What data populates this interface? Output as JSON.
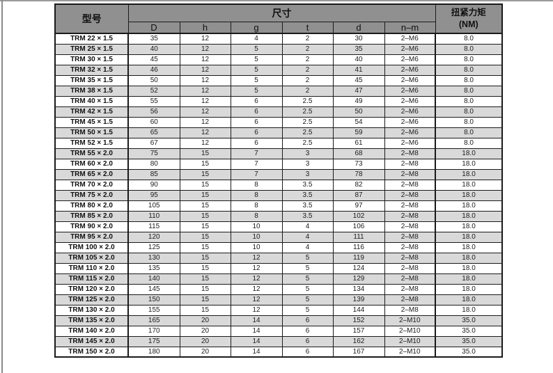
{
  "page": {
    "background": "#ffffff",
    "frame_color": "#9a9a9a"
  },
  "table": {
    "colors": {
      "header_bg": "#909090",
      "row_bg": "#ffffff",
      "row_alt_bg": "#d9d9d9",
      "border": "#1a1a1a"
    },
    "header": {
      "model_label": "型号",
      "dimensions_label": "尺寸",
      "torque_label_line1": "扭紧力矩",
      "torque_label_line2": "(NM)",
      "sub_columns": [
        "D",
        "h",
        "g",
        "t",
        "d",
        "n–m"
      ]
    },
    "rows": [
      {
        "model": "TRM 22 × 1.5",
        "D": "35",
        "h": "12",
        "g": "4",
        "t": "2",
        "d": "30",
        "n_m": "2–M6",
        "torque": "8.0"
      },
      {
        "model": "TRM 25 × 1.5",
        "D": "40",
        "h": "12",
        "g": "5",
        "t": "2",
        "d": "35",
        "n_m": "2–M6",
        "torque": "8.0"
      },
      {
        "model": "TRM 30 × 1.5",
        "D": "45",
        "h": "12",
        "g": "5",
        "t": "2",
        "d": "40",
        "n_m": "2–M6",
        "torque": "8.0"
      },
      {
        "model": "TRM 32 × 1.5",
        "D": "46",
        "h": "12",
        "g": "5",
        "t": "2",
        "d": "41",
        "n_m": "2–M6",
        "torque": "8.0"
      },
      {
        "model": "TRM 35 × 1.5",
        "D": "50",
        "h": "12",
        "g": "5",
        "t": "2",
        "d": "45",
        "n_m": "2–M6",
        "torque": "8.0"
      },
      {
        "model": "TRM 38 × 1.5",
        "D": "52",
        "h": "12",
        "g": "5",
        "t": "2",
        "d": "47",
        "n_m": "2–M6",
        "torque": "8.0"
      },
      {
        "model": "TRM 40 × 1.5",
        "D": "55",
        "h": "12",
        "g": "6",
        "t": "2.5",
        "d": "49",
        "n_m": "2–M6",
        "torque": "8.0"
      },
      {
        "model": "TRM 42 × 1.5",
        "D": "56",
        "h": "12",
        "g": "6",
        "t": "2.5",
        "d": "50",
        "n_m": "2–M6",
        "torque": "8.0"
      },
      {
        "model": "TRM 45 × 1.5",
        "D": "60",
        "h": "12",
        "g": "6",
        "t": "2.5",
        "d": "54",
        "n_m": "2–M6",
        "torque": "8.0"
      },
      {
        "model": "TRM 50 × 1.5",
        "D": "65",
        "h": "12",
        "g": "6",
        "t": "2.5",
        "d": "59",
        "n_m": "2–M6",
        "torque": "8.0"
      },
      {
        "model": "TRM 52 × 1.5",
        "D": "67",
        "h": "12",
        "g": "6",
        "t": "2.5",
        "d": "61",
        "n_m": "2–M6",
        "torque": "8.0"
      },
      {
        "model": "TRM 55 × 2.0",
        "D": "75",
        "h": "15",
        "g": "7",
        "t": "3",
        "d": "68",
        "n_m": "2–M8",
        "torque": "18.0"
      },
      {
        "model": "TRM 60 × 2.0",
        "D": "80",
        "h": "15",
        "g": "7",
        "t": "3",
        "d": "73",
        "n_m": "2–M8",
        "torque": "18.0"
      },
      {
        "model": "TRM 65 × 2.0",
        "D": "85",
        "h": "15",
        "g": "7",
        "t": "3",
        "d": "78",
        "n_m": "2–M8",
        "torque": "18.0"
      },
      {
        "model": "TRM 70 × 2.0",
        "D": "90",
        "h": "15",
        "g": "8",
        "t": "3.5",
        "d": "82",
        "n_m": "2–M8",
        "torque": "18.0"
      },
      {
        "model": "TRM 75 × 2.0",
        "D": "95",
        "h": "15",
        "g": "8",
        "t": "3.5",
        "d": "87",
        "n_m": "2–M8",
        "torque": "18.0"
      },
      {
        "model": "TRM 80 × 2.0",
        "D": "105",
        "h": "15",
        "g": "8",
        "t": "3.5",
        "d": "97",
        "n_m": "2–M8",
        "torque": "18.0"
      },
      {
        "model": "TRM 85 × 2.0",
        "D": "110",
        "h": "15",
        "g": "8",
        "t": "3.5",
        "d": "102",
        "n_m": "2–M8",
        "torque": "18.0"
      },
      {
        "model": "TRM 90 × 2.0",
        "D": "115",
        "h": "15",
        "g": "10",
        "t": "4",
        "d": "106",
        "n_m": "2–M8",
        "torque": "18.0"
      },
      {
        "model": "TRM 95 × 2.0",
        "D": "120",
        "h": "15",
        "g": "10",
        "t": "4",
        "d": "111",
        "n_m": "2–M8",
        "torque": "18.0"
      },
      {
        "model": "TRM 100 × 2.0",
        "D": "125",
        "h": "15",
        "g": "10",
        "t": "4",
        "d": "116",
        "n_m": "2–M8",
        "torque": "18.0"
      },
      {
        "model": "TRM 105 × 2.0",
        "D": "130",
        "h": "15",
        "g": "12",
        "t": "5",
        "d": "119",
        "n_m": "2–M8",
        "torque": "18.0"
      },
      {
        "model": "TRM 110 × 2.0",
        "D": "135",
        "h": "15",
        "g": "12",
        "t": "5",
        "d": "124",
        "n_m": "2–M8",
        "torque": "18.0"
      },
      {
        "model": "TRM 115 × 2.0",
        "D": "140",
        "h": "15",
        "g": "12",
        "t": "5",
        "d": "129",
        "n_m": "2–M8",
        "torque": "18.0"
      },
      {
        "model": "TRM 120 × 2.0",
        "D": "145",
        "h": "15",
        "g": "12",
        "t": "5",
        "d": "134",
        "n_m": "2–M8",
        "torque": "18.0"
      },
      {
        "model": "TRM 125 × 2.0",
        "D": "150",
        "h": "15",
        "g": "12",
        "t": "5",
        "d": "139",
        "n_m": "2–M8",
        "torque": "18.0"
      },
      {
        "model": "TRM 130 × 2.0",
        "D": "155",
        "h": "15",
        "g": "12",
        "t": "5",
        "d": "144",
        "n_m": "2–M8",
        "torque": "18.0"
      },
      {
        "model": "TRM 135 × 2.0",
        "D": "165",
        "h": "20",
        "g": "14",
        "t": "6",
        "d": "152",
        "n_m": "2–M10",
        "torque": "35.0"
      },
      {
        "model": "TRM 140 × 2.0",
        "D": "170",
        "h": "20",
        "g": "14",
        "t": "6",
        "d": "157",
        "n_m": "2–M10",
        "torque": "35.0"
      },
      {
        "model": "TRM 145 × 2.0",
        "D": "175",
        "h": "20",
        "g": "14",
        "t": "6",
        "d": "162",
        "n_m": "2–M10",
        "torque": "35.0"
      },
      {
        "model": "TRM 150 × 2.0",
        "D": "180",
        "h": "20",
        "g": "14",
        "t": "6",
        "d": "167",
        "n_m": "2–M10",
        "torque": "35.0"
      }
    ]
  }
}
